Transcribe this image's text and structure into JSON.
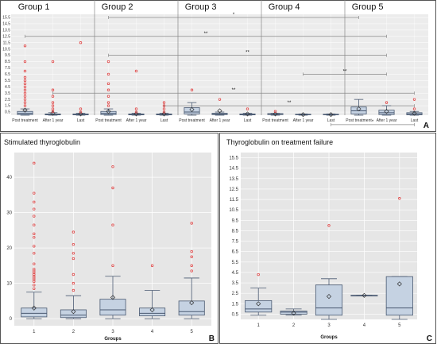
{
  "colors": {
    "box_fill": "#c5d2e2",
    "box_edge": "#4a5a72",
    "outlier": "#e04848",
    "plot_bg": "#e6e6e6",
    "grid": "#ffffff",
    "sig_line": "#888888"
  },
  "panels": {
    "A": {
      "label": "A",
      "groups": [
        "Group 1",
        "Group 2",
        "Group 3",
        "Group 4",
        "Group 5"
      ],
      "x_tick_labels": [
        "Post treatment",
        "After 1 year",
        "Last"
      ],
      "y_ticks": [
        "0.5",
        "1.5",
        "2.5",
        "3.5",
        "4.5",
        "5.5",
        "6.5",
        "7.5",
        "8.5",
        "9.5",
        "10.5",
        "11.5",
        "12.5",
        "13.5",
        "14.5",
        "15.5"
      ]
    },
    "B": {
      "label": "B",
      "title": "Stimulated thyroglobulin",
      "xlabel": "Groups",
      "categories": [
        "1",
        "2",
        "3",
        "4",
        "5"
      ],
      "y_ticks": [
        "0",
        "10",
        "20",
        "30",
        "40"
      ]
    },
    "C": {
      "label": "C",
      "title": "Thyroglobulin on treatment failure",
      "xlabel": "Groups",
      "categories": [
        "1",
        "2",
        "3",
        "4",
        "5"
      ],
      "y_ticks": [
        "0.5",
        "1.5",
        "2.5",
        "3.5",
        "4.5",
        "5.5",
        "6.5",
        "7.5",
        "8.5",
        "9.5",
        "10.5",
        "11.5",
        "12.5",
        "13.5",
        "14.5",
        "15.5"
      ]
    }
  },
  "chart_data": [
    {
      "type": "box",
      "panel": "A",
      "ylim": [
        0,
        16
      ],
      "brackets": [
        {
          "from": 4,
          "to": 13,
          "label": "*",
          "level": 15.5
        },
        {
          "from": 1,
          "to": 14,
          "label": "**",
          "level": 12.5
        },
        {
          "from": 4,
          "to": 14,
          "label": "**",
          "level": 9.5
        },
        {
          "from": 11,
          "to": 14,
          "label": "**",
          "level": 6.5
        },
        {
          "from": 2,
          "to": 15,
          "label": "**",
          "level": 3.5
        },
        {
          "from": 6,
          "to": 15,
          "label": "**",
          "level": 1.5
        },
        {
          "from": 12,
          "to": 15,
          "label": "*",
          "level": -1.5
        }
      ],
      "boxes": [
        {
          "group": "Group 1",
          "x": "Post treatment",
          "q1": 0.1,
          "median": 0.3,
          "q3": 0.6,
          "mean": 0.8,
          "whisker_low": 0.0,
          "whisker_high": 1.0,
          "outliers": [
            1.5,
            2.0,
            2.5,
            3.0,
            3.5,
            4.0,
            4.5,
            5.0,
            5.5,
            6.0,
            7.0,
            8.5,
            11.0
          ]
        },
        {
          "group": "Group 1",
          "x": "After 1 year",
          "q1": 0.05,
          "median": 0.1,
          "q3": 0.2,
          "mean": 0.3,
          "whisker_low": 0.0,
          "whisker_high": 0.4,
          "outliers": [
            0.6,
            1.0,
            1.5,
            2.0,
            3.0,
            4.0,
            8.5
          ]
        },
        {
          "group": "Group 1",
          "x": "Last",
          "q1": 0.05,
          "median": 0.1,
          "q3": 0.2,
          "mean": 0.2,
          "whisker_low": 0.0,
          "whisker_high": 0.3,
          "outliers": [
            0.5,
            1.0,
            11.5
          ]
        },
        {
          "group": "Group 2",
          "x": "Post treatment",
          "q1": 0.1,
          "median": 0.3,
          "q3": 0.6,
          "mean": 0.6,
          "whisker_low": 0.0,
          "whisker_high": 1.0,
          "outliers": [
            1.5,
            2.0,
            3.0,
            4.0,
            5.0,
            6.5,
            8.5
          ]
        },
        {
          "group": "Group 2",
          "x": "After 1 year",
          "q1": 0.05,
          "median": 0.1,
          "q3": 0.2,
          "mean": 0.2,
          "whisker_low": 0.0,
          "whisker_high": 0.3,
          "outliers": [
            0.5,
            1.0,
            7.0
          ]
        },
        {
          "group": "Group 2",
          "x": "Last",
          "q1": 0.05,
          "median": 0.1,
          "q3": 0.2,
          "mean": 0.2,
          "whisker_low": 0.0,
          "whisker_high": 0.3,
          "outliers": [
            0.5,
            1.0,
            1.5,
            2.0
          ]
        },
        {
          "group": "Group 3",
          "x": "Post treatment",
          "q1": 0.2,
          "median": 0.5,
          "q3": 1.2,
          "mean": 0.9,
          "whisker_low": 0.0,
          "whisker_high": 2.0,
          "outliers": [
            4.0
          ]
        },
        {
          "group": "Group 3",
          "x": "After 1 year",
          "q1": 0.1,
          "median": 0.2,
          "q3": 0.3,
          "mean": 0.7,
          "whisker_low": 0.0,
          "whisker_high": 0.5,
          "outliers": [
            2.5
          ]
        },
        {
          "group": "Group 3",
          "x": "Last",
          "q1": 0.05,
          "median": 0.1,
          "q3": 0.2,
          "mean": 0.2,
          "whisker_low": 0.0,
          "whisker_high": 0.3,
          "outliers": [
            1.0
          ]
        },
        {
          "group": "Group 4",
          "x": "Post treatment",
          "q1": 0.1,
          "median": 0.15,
          "q3": 0.25,
          "mean": 0.2,
          "whisker_low": 0.0,
          "whisker_high": 0.3,
          "outliers": [
            0.6
          ]
        },
        {
          "group": "Group 4",
          "x": "After 1 year",
          "q1": 0.05,
          "median": 0.1,
          "q3": 0.15,
          "mean": 0.1,
          "whisker_low": 0.0,
          "whisker_high": 0.2,
          "outliers": []
        },
        {
          "group": "Group 4",
          "x": "Last",
          "q1": 0.05,
          "median": 0.1,
          "q3": 0.15,
          "mean": 0.1,
          "whisker_low": 0.0,
          "whisker_high": 0.2,
          "outliers": []
        },
        {
          "group": "Group 5",
          "x": "Post treatment",
          "q1": 0.2,
          "median": 0.7,
          "q3": 1.3,
          "mean": 1.0,
          "whisker_low": 0.0,
          "whisker_high": 2.5,
          "outliers": []
        },
        {
          "group": "Group 5",
          "x": "After 1 year",
          "q1": 0.1,
          "median": 0.4,
          "q3": 0.8,
          "mean": 0.6,
          "whisker_low": 0.0,
          "whisker_high": 1.5,
          "outliers": [
            2.0
          ]
        },
        {
          "group": "Group 5",
          "x": "Last",
          "q1": 0.05,
          "median": 0.2,
          "q3": 0.4,
          "mean": 0.3,
          "whisker_low": 0.0,
          "whisker_high": 0.6,
          "outliers": [
            1.0,
            2.5
          ]
        }
      ]
    },
    {
      "type": "box",
      "panel": "B",
      "title": "Stimulated thyroglobulin",
      "xlabel": "Groups",
      "ylim": [
        -2,
        47
      ],
      "boxes": [
        {
          "x": "1",
          "q1": 0.5,
          "median": 1.5,
          "q3": 3.0,
          "mean": 3.0,
          "whisker_low": 0.0,
          "whisker_high": 7.5,
          "outliers": [
            8.5,
            9.5,
            10.5,
            11.0,
            11.5,
            12.0,
            12.5,
            13.0,
            13.5,
            14.0,
            15.5,
            18.5,
            20.5,
            23.0,
            24.0,
            26.5,
            29.0,
            31.0,
            33.0,
            35.5,
            44.0
          ]
        },
        {
          "x": "2",
          "q1": 0.3,
          "median": 1.0,
          "q3": 2.5,
          "mean": 2.0,
          "whisker_low": 0.0,
          "whisker_high": 6.5,
          "outliers": [
            8.0,
            10.0,
            12.5,
            17.0,
            18.5,
            21.0,
            24.5
          ]
        },
        {
          "x": "3",
          "q1": 1.0,
          "median": 2.5,
          "q3": 5.5,
          "mean": 6.0,
          "whisker_low": 0.0,
          "whisker_high": 12.0,
          "outliers": [
            15.0,
            26.5,
            37.0,
            43.0
          ]
        },
        {
          "x": "4",
          "q1": 0.8,
          "median": 1.5,
          "q3": 3.0,
          "mean": 2.5,
          "whisker_low": 0.0,
          "whisker_high": 8.0,
          "outliers": [
            15.0
          ]
        },
        {
          "x": "5",
          "q1": 1.0,
          "median": 2.0,
          "q3": 5.0,
          "mean": 4.5,
          "whisker_low": 0.0,
          "whisker_high": 11.5,
          "outliers": [
            13.5,
            15.0,
            17.5,
            19.0,
            27.0
          ]
        }
      ]
    },
    {
      "type": "box",
      "panel": "C",
      "title": "Thyroglobulin on treatment failure",
      "xlabel": "Groups",
      "ylim": [
        0,
        16
      ],
      "boxes": [
        {
          "x": "1",
          "q1": 0.7,
          "median": 1.0,
          "q3": 1.8,
          "mean": 1.5,
          "whisker_low": 0.4,
          "whisker_high": 3.0,
          "outliers": [
            4.3
          ]
        },
        {
          "x": "2",
          "q1": 0.5,
          "median": 0.7,
          "q3": 0.8,
          "mean": 0.6,
          "whisker_low": 0.4,
          "whisker_high": 1.0,
          "outliers": []
        },
        {
          "x": "3",
          "q1": 0.4,
          "median": 1.1,
          "q3": 3.3,
          "mean": 2.2,
          "whisker_low": 0.0,
          "whisker_high": 3.9,
          "outliers": [
            9.0
          ]
        },
        {
          "x": "4",
          "q1": 2.3,
          "median": 2.3,
          "q3": 2.3,
          "mean": 2.3,
          "whisker_low": 2.3,
          "whisker_high": 2.3,
          "outliers": []
        },
        {
          "x": "5",
          "q1": 0.4,
          "median": 1.1,
          "q3": 4.1,
          "mean": 3.4,
          "whisker_low": 0.0,
          "whisker_high": 4.1,
          "outliers": [
            11.6
          ]
        }
      ]
    }
  ]
}
